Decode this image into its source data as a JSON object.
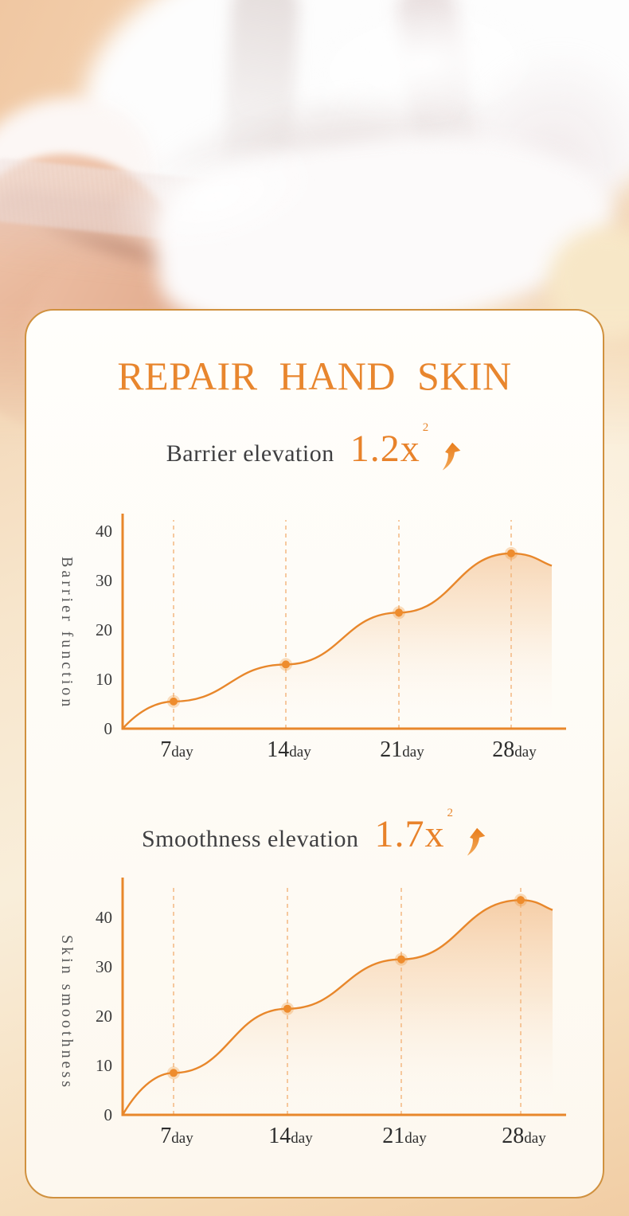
{
  "card": {
    "title": "REPAIR HAND SKIN",
    "sections": [
      {
        "label": "Barrier elevation",
        "multiplier": "1.2x",
        "sup": "2"
      },
      {
        "label": "Smoothness elevation",
        "multiplier": "1.7x",
        "sup": "2"
      }
    ]
  },
  "icons": {
    "growth_arrow": "curved-up-right-arrow"
  },
  "colors": {
    "accent_orange": "#e8872b",
    "title_orange": "#e8862e",
    "stat_text_gray": "#3f3f41",
    "card_border": "#d0913f",
    "background_peach": "#f0cba8",
    "guide_dash_orange": "#f3b379"
  },
  "chart_data": [
    {
      "type": "line",
      "title": "Barrier elevation 1.2x²",
      "ylabel": "Barrier function",
      "xlabel": "",
      "x_tick_labels": [
        "7day",
        "14day",
        "21day",
        "28day"
      ],
      "x_days": [
        7,
        14,
        21,
        28
      ],
      "values": [
        5.5,
        13,
        23.5,
        35.5
      ],
      "y_ticks": [
        0,
        10,
        20,
        30,
        40
      ],
      "ylim": [
        0,
        44
      ],
      "curve_start_value": 0,
      "curve_end_value": 33,
      "grid": "vertical-dashed-guides",
      "legend_position": "none",
      "line_color": "#e8872b",
      "marker": "filled-circle",
      "area_fill": "orange-to-transparent-gradient"
    },
    {
      "type": "line",
      "title": "Smoothness elevation 1.7x²",
      "ylabel": "Skin smoothness",
      "xlabel": "",
      "x_tick_labels": [
        "7day",
        "14day",
        "21day",
        "28day"
      ],
      "x_days": [
        7,
        14,
        21,
        28
      ],
      "values": [
        8.5,
        21.5,
        31.5,
        43.5
      ],
      "y_ticks": [
        0,
        10,
        20,
        30,
        40
      ],
      "ylim": [
        0,
        48
      ],
      "curve_start_value": 0,
      "curve_end_value": 41.5,
      "grid": "vertical-dashed-guides",
      "legend_position": "none",
      "line_color": "#e8872b",
      "marker": "filled-circle",
      "area_fill": "orange-to-transparent-gradient"
    }
  ]
}
